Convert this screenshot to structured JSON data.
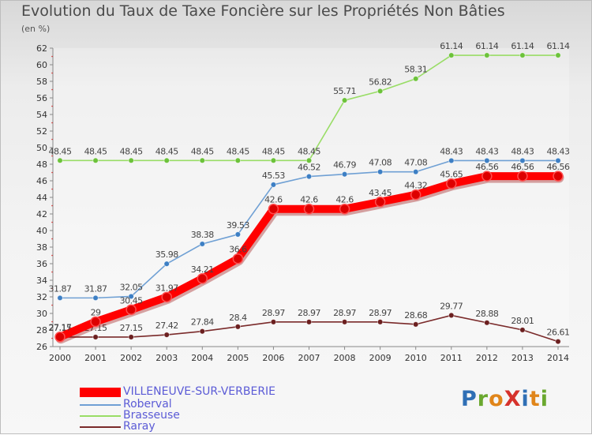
{
  "title": "Evolution du Taux de Taxe Foncière sur les Propriétés Non Bâties",
  "unit_label": "(en %)",
  "logo": {
    "text": "ProXiti",
    "letter_colors": [
      "#2f6fb5",
      "#6aa82f",
      "#e0851a",
      "#d6322c",
      "#2f6fb5",
      "#e0851a",
      "#6aa82f"
    ]
  },
  "chart_data": {
    "type": "line",
    "title": "Evolution du Taux de Taxe Foncière sur les Propriétés Non Bâties",
    "ylabel": "(en %)",
    "xlabel": "",
    "x": [
      "2000",
      "2001",
      "2002",
      "2003",
      "2004",
      "2005",
      "2006",
      "2007",
      "2008",
      "2009",
      "2010",
      "2011",
      "2012",
      "2013",
      "2014"
    ],
    "ylim": [
      26,
      62
    ],
    "yticks": [
      26,
      28,
      30,
      32,
      34,
      36,
      38,
      40,
      42,
      44,
      46,
      48,
      50,
      52,
      54,
      56,
      58,
      60,
      62
    ],
    "grid": false,
    "legend_position": "bottom-left",
    "series": [
      {
        "name": "Raray",
        "color": "#7a2a2a",
        "marker_color": "#6b1f1f",
        "values": [
          27.15,
          27.15,
          27.15,
          27.42,
          27.84,
          28.4,
          28.97,
          28.97,
          28.97,
          28.97,
          28.68,
          29.77,
          28.88,
          28.01,
          26.61
        ],
        "labels": [
          "27.15",
          "27.15",
          "27.15",
          "27.42",
          "27.84",
          "28.4",
          "28.97",
          "28.97",
          "28.97",
          "28.97",
          "28.68",
          "29.77",
          "28.88",
          "28.01",
          "26.61"
        ]
      },
      {
        "name": "Brasseuse",
        "color": "#99dd66",
        "marker_color": "#6cc23a",
        "values": [
          48.45,
          48.45,
          48.45,
          48.45,
          48.45,
          48.45,
          48.45,
          48.45,
          55.71,
          56.82,
          58.31,
          61.14,
          61.14,
          61.14,
          61.14
        ],
        "labels": [
          "48.45",
          "48.45",
          "48.45",
          "48.45",
          "48.45",
          "48.45",
          "48.45",
          "48.45",
          "55.71",
          "56.82",
          "58.31",
          "61.14",
          "61.14",
          "61.14",
          "61.14"
        ]
      },
      {
        "name": "Roberval",
        "color": "#6fa0d4",
        "marker_color": "#3d7fc4",
        "values": [
          31.87,
          31.87,
          32.05,
          35.98,
          38.38,
          39.53,
          45.53,
          46.52,
          46.79,
          47.08,
          47.08,
          48.43,
          48.43,
          48.43,
          48.43
        ],
        "labels": [
          "31.87",
          "31.87",
          "32.05",
          "35.98",
          "38.38",
          "39.53",
          "45.53",
          "46.52",
          "46.79",
          "47.08",
          "47.08",
          "48.43",
          "48.43",
          "48.43",
          "48.43"
        ]
      },
      {
        "name": "VILLENEUVE-SUR-VERBERIE",
        "color": "#ff0000",
        "marker_color": "#dd0000",
        "values": [
          27.17,
          29,
          30.45,
          31.97,
          34.21,
          36.6,
          42.6,
          42.6,
          42.6,
          43.45,
          44.32,
          45.65,
          46.56,
          46.56,
          46.56
        ],
        "labels": [
          "27.17",
          "29",
          "30.45",
          "31.97",
          "34.21",
          "36.6",
          "42.6",
          "42.6",
          "42.6",
          "43.45",
          "44.32",
          "45.65",
          "46.56",
          "46.56",
          "46.56"
        ]
      }
    ],
    "legend": [
      {
        "name": "VILLENEUVE-SUR-VERBERIE",
        "color": "#ff0000"
      },
      {
        "name": "Roberval",
        "color": "#6fa0d4"
      },
      {
        "name": "Brasseuse",
        "color": "#99dd66"
      },
      {
        "name": "Raray",
        "color": "#7a2a2a"
      }
    ]
  }
}
